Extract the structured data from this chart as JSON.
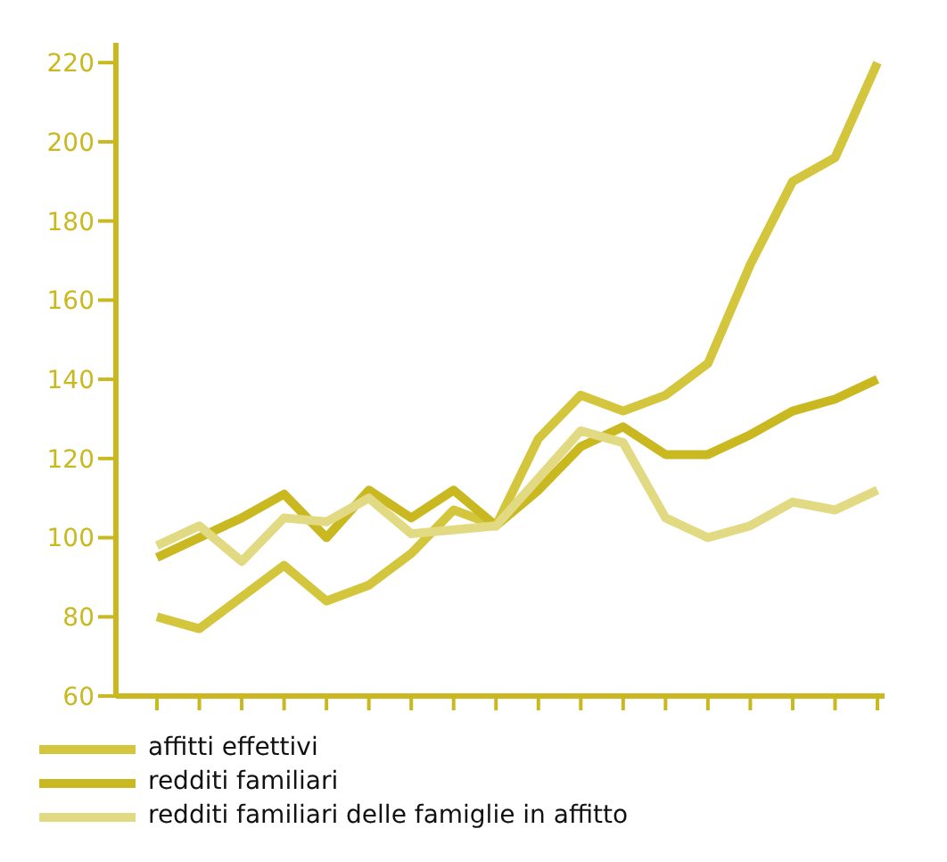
{
  "chart_data": {
    "type": "line",
    "categories": [
      null,
      null,
      null,
      null,
      null,
      null,
      null,
      null,
      null,
      null,
      null,
      null,
      null,
      null,
      null,
      null,
      null,
      null
    ],
    "series": [
      {
        "name": "affitti effettivi",
        "color": "#d4c63c",
        "values": [
          80,
          77,
          85,
          93,
          84,
          88,
          96,
          107,
          103,
          125,
          136,
          132,
          136,
          144,
          169,
          190,
          196,
          220
        ]
      },
      {
        "name": "redditi familiari",
        "color": "#c9b820",
        "values": [
          95,
          100,
          105,
          111,
          100,
          112,
          105,
          112,
          103,
          112,
          123,
          128,
          121,
          121,
          126,
          132,
          135,
          140
        ]
      },
      {
        "name": "redditi familiari delle famiglie in affitto",
        "color": "#e2da82",
        "values": [
          98,
          103,
          94,
          105,
          104,
          110,
          101,
          102,
          103,
          115,
          127,
          124,
          105,
          100,
          103,
          109,
          107,
          112
        ]
      }
    ],
    "ylim": [
      60,
      225
    ],
    "yticks": [
      60,
      80,
      100,
      120,
      140,
      160,
      180,
      200,
      220
    ],
    "tick_labels": "y",
    "grid": false,
    "legend": "bottom",
    "marker": "none",
    "line_style": "solid"
  }
}
